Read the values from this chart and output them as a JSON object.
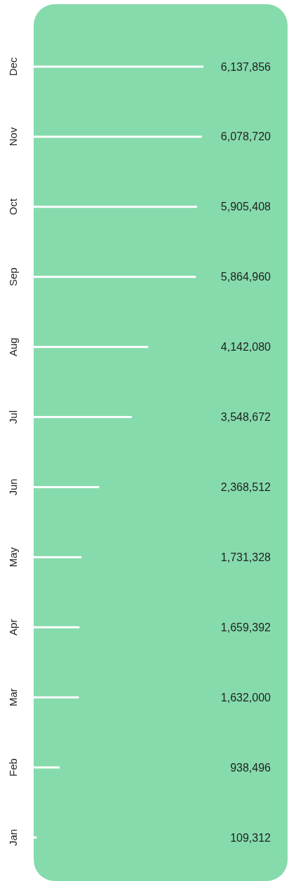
{
  "chart_data": {
    "type": "bar",
    "orientation": "horizontal",
    "categories": [
      "Dec",
      "Nov",
      "Oct",
      "Sep",
      "Aug",
      "Jul",
      "Jun",
      "May",
      "Apr",
      "Mar",
      "Feb",
      "Jan"
    ],
    "values": [
      6137856,
      6078720,
      5905408,
      5864960,
      4142080,
      3548672,
      2368512,
      1731328,
      1659392,
      1632000,
      938496,
      109312
    ],
    "value_labels": [
      "6,137,856",
      "6,078,720",
      "5,905,408",
      "5,864,960",
      "4,142,080",
      "3,548,672",
      "2,368,512",
      "1,731,328",
      "1,659,392",
      "1,632,000",
      "938,496",
      "109,312"
    ],
    "color": "#ffffff"
  }
}
